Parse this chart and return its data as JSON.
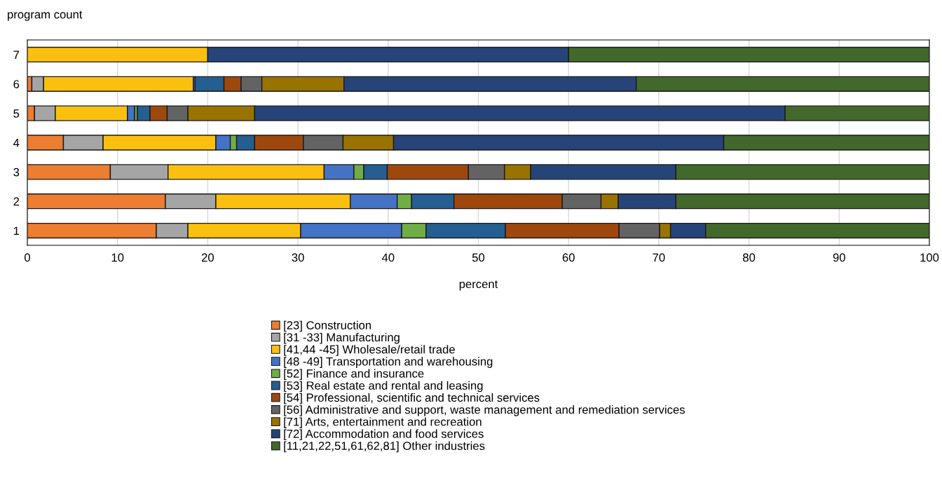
{
  "chart_data": {
    "type": "bar",
    "orientation": "horizontal",
    "stacked": true,
    "ylabel": "program count",
    "xlabel": "percent",
    "categories": [
      "7",
      "6",
      "5",
      "4",
      "3",
      "2",
      "1"
    ],
    "xlim": [
      0,
      100
    ],
    "xticks": [
      0,
      10,
      20,
      30,
      40,
      50,
      60,
      70,
      80,
      90,
      100
    ],
    "grid": "x",
    "legend": "bottom",
    "series": [
      {
        "name": "[23] Construction",
        "color": "#ed7d31",
        "values": [
          0,
          0.5,
          0.8,
          4.0,
          9.2,
          15.3,
          14.3
        ]
      },
      {
        "name": "[31 -33] Manufacturing",
        "color": "#a5a5a5",
        "values": [
          0,
          1.3,
          2.3,
          4.4,
          6.4,
          5.6,
          3.5
        ]
      },
      {
        "name": "[41,44 -45] Wholesale/retail trade",
        "color": "#fbc00f",
        "values": [
          20.0,
          16.6,
          8.0,
          12.5,
          17.3,
          14.9,
          12.5
        ]
      },
      {
        "name": "[48 -49] Transportation and warehousing",
        "color": "#4472c4",
        "values": [
          0,
          0.2,
          0.8,
          1.6,
          3.3,
          5.2,
          11.2
        ]
      },
      {
        "name": "[52] Finance and insurance",
        "color": "#70ad47",
        "values": [
          0,
          0,
          0.3,
          0.7,
          1.1,
          1.6,
          2.7
        ]
      },
      {
        "name": "[53] Real estate and rental and leasing",
        "color": "#255e91",
        "values": [
          0,
          3.2,
          1.4,
          2.0,
          2.6,
          4.7,
          8.8
        ]
      },
      {
        "name": "[54] Professional, scientific and technical services",
        "color": "#9e480e",
        "values": [
          0,
          1.9,
          1.9,
          5.4,
          9.0,
          12.0,
          12.6
        ]
      },
      {
        "name": "[56] Administrative and support, waste management and remediation services",
        "color": "#636363",
        "values": [
          0,
          2.3,
          2.3,
          4.4,
          4.0,
          4.3,
          4.5
        ]
      },
      {
        "name": "[71] Arts, entertainment and recreation",
        "color": "#997300",
        "values": [
          0,
          9.1,
          7.4,
          5.6,
          2.9,
          1.9,
          1.2
        ]
      },
      {
        "name": "[72] Accommodation and food services",
        "color": "#264478",
        "values": [
          40.0,
          32.4,
          58.8,
          36.6,
          16.1,
          6.4,
          3.9
        ]
      },
      {
        "name": "[11,21,22,51,61,62,81] Other industries",
        "color": "#43682b",
        "values": [
          40.0,
          32.5,
          16.0,
          22.8,
          28.1,
          28.1,
          24.8
        ]
      }
    ]
  }
}
